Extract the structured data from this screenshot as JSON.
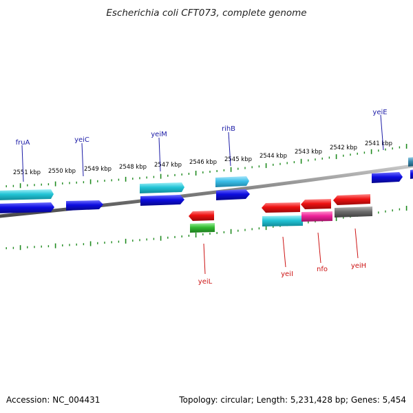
{
  "title": "Escherichia coli CFT073, complete genome",
  "footer": {
    "accession": "Accession: NC_004431",
    "summary": "Topology: circular; Length: 5,231,428 bp; Genes: 5,454"
  },
  "tick_labels": [
    "2551 kbp",
    "2550 kbp",
    "2549 kbp",
    "2548 kbp",
    "2547 kbp",
    "2546 kbp",
    "2545 kbp",
    "2544 kbp",
    "2543 kbp",
    "2542 kbp",
    "2541 kbp"
  ],
  "genes_forward": [
    "fruA",
    "yeiC",
    "yeiM",
    "rihB",
    "yeiE"
  ],
  "genes_reverse": [
    "yeiL",
    "yeiI",
    "nfo",
    "yeiH"
  ],
  "colors": {
    "backbone": "#808080",
    "ticks": "#1e8a1e",
    "forward_label": "#1a1aa6",
    "reverse_label": "#cc1111",
    "blue": "#0d0de0",
    "cyan": "#22c4d6",
    "light_blue": "#3cbfe8",
    "red": "#ee1111",
    "green": "#33bb33",
    "magenta": "#ee2299",
    "gray": "#6e6e6e"
  }
}
